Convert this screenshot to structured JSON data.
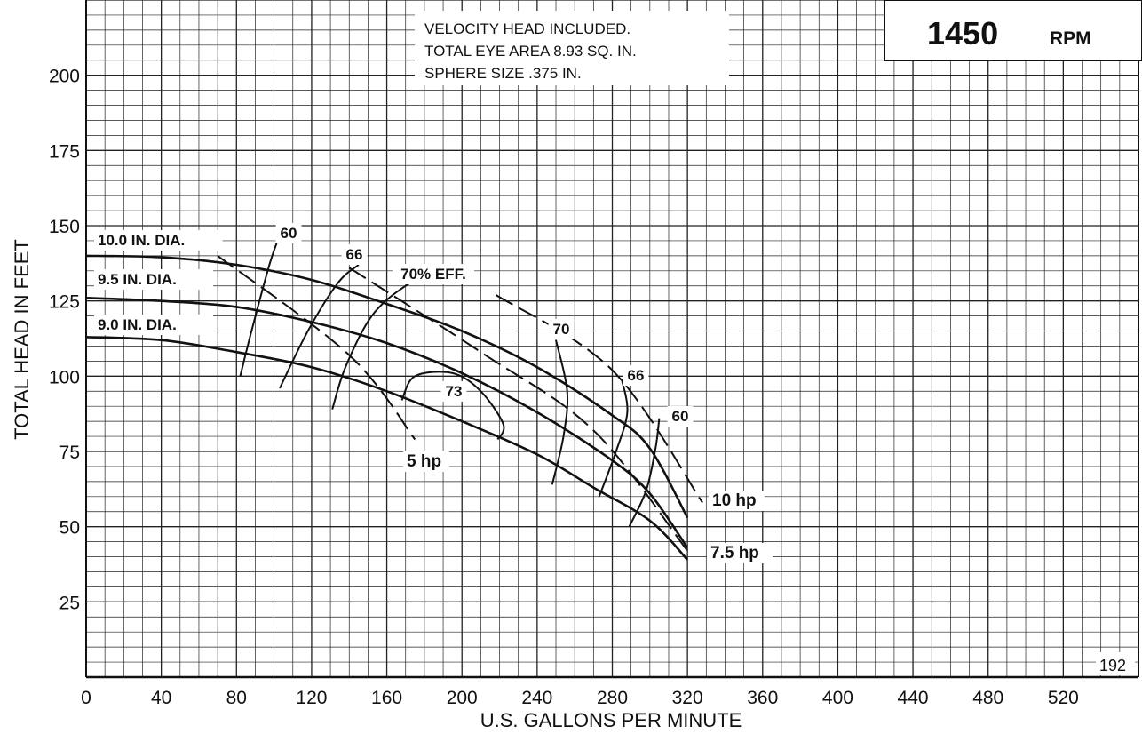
{
  "chart_data": {
    "type": "line",
    "title": "1450",
    "title_unit": "RPM",
    "xlabel": "U.S. GALLONS PER MINUTE",
    "ylabel": "TOTAL HEAD IN FEET",
    "xlim": [
      0,
      560
    ],
    "ylim": [
      0,
      225
    ],
    "x_ticks": [
      0,
      40,
      80,
      120,
      160,
      200,
      240,
      280,
      320,
      360,
      400,
      440,
      480,
      520
    ],
    "y_ticks": [
      25,
      50,
      75,
      100,
      125,
      150,
      175,
      200
    ],
    "grid": true,
    "notes": [
      "VELOCITY HEAD INCLUDED.",
      "TOTAL EYE AREA 8.93 SQ. IN.",
      "SPHERE SIZE .375 IN."
    ],
    "figure_number": "192",
    "impeller_curves": [
      {
        "label": "10.0 IN. DIA.",
        "points": [
          [
            0,
            140
          ],
          [
            40,
            139.5
          ],
          [
            80,
            137
          ],
          [
            120,
            132
          ],
          [
            160,
            124
          ],
          [
            200,
            115
          ],
          [
            240,
            103
          ],
          [
            280,
            87
          ],
          [
            300,
            76
          ],
          [
            320,
            53
          ]
        ]
      },
      {
        "label": "9.5 IN. DIA.",
        "points": [
          [
            0,
            126
          ],
          [
            40,
            125
          ],
          [
            80,
            123
          ],
          [
            120,
            118
          ],
          [
            160,
            111
          ],
          [
            200,
            101
          ],
          [
            240,
            88
          ],
          [
            280,
            72
          ],
          [
            300,
            61
          ],
          [
            320,
            43
          ]
        ]
      },
      {
        "label": "9.0 IN. DIA.",
        "points": [
          [
            0,
            113
          ],
          [
            40,
            112
          ],
          [
            80,
            108
          ],
          [
            120,
            103
          ],
          [
            160,
            95
          ],
          [
            200,
            85
          ],
          [
            240,
            74
          ],
          [
            270,
            63
          ],
          [
            300,
            52
          ],
          [
            320,
            39
          ]
        ]
      }
    ],
    "efficiency_curves": [
      {
        "label": "60",
        "points": [
          [
            82,
            100
          ],
          [
            88,
            115
          ],
          [
            98,
            138
          ],
          [
            105,
            150
          ]
        ]
      },
      {
        "label": "66",
        "points": [
          [
            103,
            96
          ],
          [
            118,
            115
          ],
          [
            134,
            131
          ],
          [
            145,
            137
          ]
        ]
      },
      {
        "label": "70% EFF.",
        "points": [
          [
            131,
            89
          ],
          [
            138,
            103
          ],
          [
            152,
            120
          ],
          [
            170,
            130
          ],
          [
            190,
            136
          ]
        ]
      },
      {
        "label": "73",
        "points": [
          [
            168,
            92
          ],
          [
            175,
            100
          ],
          [
            195,
            101
          ],
          [
            210,
            95
          ],
          [
            222,
            84
          ],
          [
            219,
            79
          ]
        ]
      },
      {
        "label": "70",
        "points": [
          [
            248,
            64
          ],
          [
            254,
            80
          ],
          [
            256,
            95
          ],
          [
            250,
            112
          ]
        ]
      },
      {
        "label": "66",
        "points": [
          [
            273,
            60
          ],
          [
            282,
            75
          ],
          [
            288,
            88
          ],
          [
            285,
            99
          ]
        ]
      },
      {
        "label": "60",
        "points": [
          [
            289,
            50
          ],
          [
            298,
            62
          ],
          [
            303,
            76
          ],
          [
            305,
            86
          ]
        ]
      }
    ],
    "power_curves": [
      {
        "label": "5 hp",
        "points": [
          [
            70,
            140
          ],
          [
            140,
            107
          ],
          [
            175,
            79
          ]
        ]
      },
      {
        "label": "7.5 hp",
        "points": [
          [
            140,
            136
          ],
          [
            210,
            108
          ],
          [
            270,
            82
          ],
          [
            320,
            42
          ]
        ]
      },
      {
        "label": "10 hp",
        "points": [
          [
            218,
            127
          ],
          [
            280,
            102
          ],
          [
            328,
            58
          ]
        ]
      }
    ]
  }
}
